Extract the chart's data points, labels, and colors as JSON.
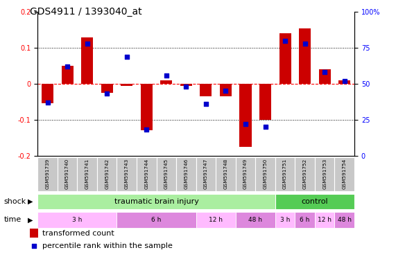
{
  "title": "GDS4911 / 1393040_at",
  "samples": [
    "GSM591739",
    "GSM591740",
    "GSM591741",
    "GSM591742",
    "GSM591743",
    "GSM591744",
    "GSM591745",
    "GSM591746",
    "GSM591747",
    "GSM591748",
    "GSM591749",
    "GSM591750",
    "GSM591751",
    "GSM591752",
    "GSM591753",
    "GSM591754"
  ],
  "red_bars": [
    -0.055,
    0.05,
    0.13,
    -0.025,
    -0.005,
    -0.13,
    0.01,
    -0.005,
    -0.035,
    -0.035,
    -0.175,
    -0.1,
    0.14,
    0.155,
    0.04,
    0.01
  ],
  "blue_dots": [
    37,
    62,
    78,
    43,
    69,
    18,
    56,
    48,
    36,
    45,
    22,
    20,
    80,
    78,
    58,
    52
  ],
  "ylim_left": [
    -0.2,
    0.2
  ],
  "ylim_right": [
    0,
    100
  ],
  "yticks_left": [
    -0.2,
    -0.1,
    0.0,
    0.1,
    0.2
  ],
  "yticks_right": [
    0,
    25,
    50,
    75,
    100
  ],
  "ytick_labels_right": [
    "0",
    "25",
    "50",
    "75",
    "100%"
  ],
  "bar_color": "#cc0000",
  "dot_color": "#0000cc",
  "background_color": "#ffffff",
  "label_bg_color": "#c8c8c8",
  "shock_tbi_color": "#aaeea0",
  "shock_ctrl_color": "#55cc55",
  "time_light_color": "#ffaaff",
  "time_dark_color": "#dd77dd",
  "legend_red": "transformed count",
  "legend_blue": "percentile rank within the sample",
  "time_groups": [
    {
      "label": "3 h",
      "start": 0,
      "end": 4,
      "color": "#ffbbff"
    },
    {
      "label": "6 h",
      "start": 4,
      "end": 8,
      "color": "#dd88dd"
    },
    {
      "label": "12 h",
      "start": 8,
      "end": 10,
      "color": "#ffbbff"
    },
    {
      "label": "48 h",
      "start": 10,
      "end": 12,
      "color": "#dd88dd"
    },
    {
      "label": "3 h",
      "start": 12,
      "end": 13,
      "color": "#ffbbff"
    },
    {
      "label": "6 h",
      "start": 13,
      "end": 14,
      "color": "#dd88dd"
    },
    {
      "label": "12 h",
      "start": 14,
      "end": 15,
      "color": "#ffbbff"
    },
    {
      "label": "48 h",
      "start": 15,
      "end": 16,
      "color": "#dd88dd"
    }
  ]
}
